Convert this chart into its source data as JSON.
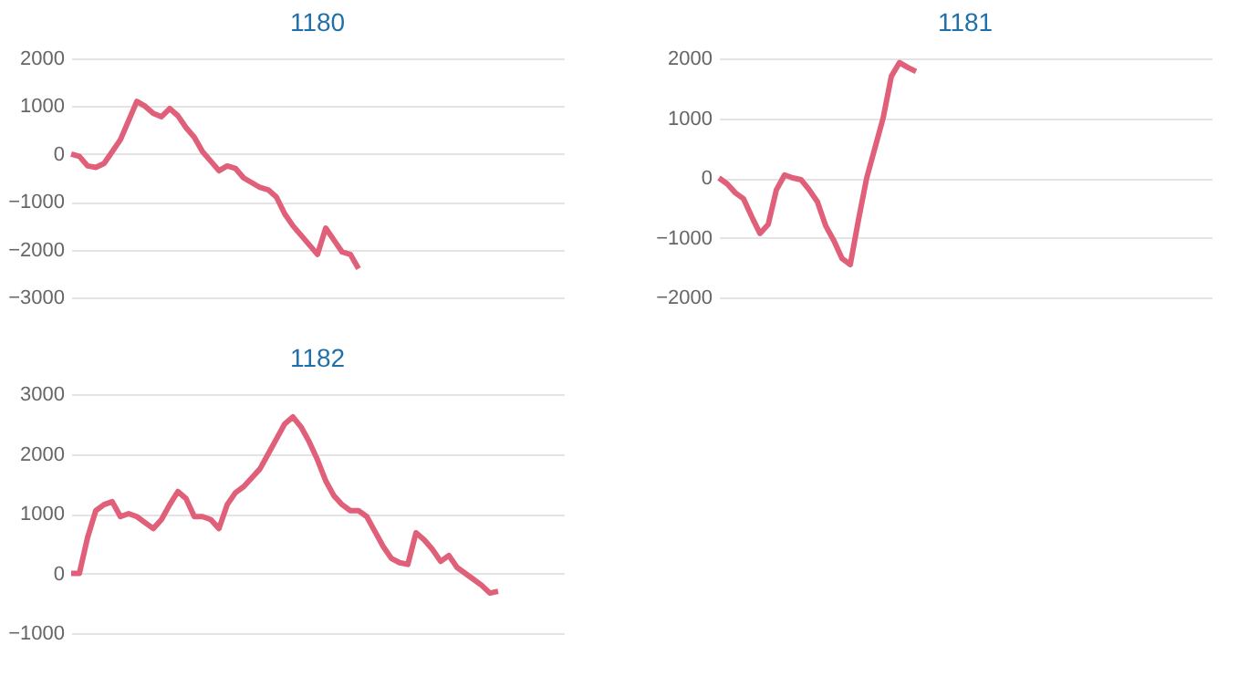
{
  "chart_data": [
    {
      "type": "line",
      "title": "1180",
      "categories": [
        null,
        null,
        null,
        null,
        null,
        null,
        null,
        null,
        null,
        null,
        null,
        null,
        null,
        null,
        null,
        null,
        null,
        null,
        null,
        null,
        null,
        null,
        null,
        null,
        null,
        null,
        null,
        null,
        null,
        null,
        null,
        null,
        null,
        null,
        null,
        null,
        null,
        null,
        null,
        null,
        null,
        null,
        null,
        null,
        null,
        null,
        null,
        null,
        null,
        null,
        null,
        null,
        null,
        null,
        null,
        null,
        null,
        null,
        null,
        null,
        null
      ],
      "series": [
        {
          "color": "#e0607a",
          "values": [
            0,
            -50,
            -250,
            -280,
            -200,
            50,
            300,
            700,
            1100,
            1000,
            850,
            780,
            950,
            800,
            550,
            350,
            50,
            -150,
            -350,
            -250,
            -300,
            -500,
            -600,
            -700,
            -750,
            -900,
            -1250,
            -1500,
            -1700,
            -1900,
            -2100,
            -1550,
            -1800,
            -2050,
            -2100,
            -2400,
            null,
            null,
            null,
            null,
            null,
            null,
            null,
            null,
            null,
            null,
            null,
            null,
            null,
            null,
            null,
            null,
            null,
            null,
            null,
            null,
            null,
            null,
            null,
            null,
            null
          ]
        }
      ],
      "ylim": [
        -3000,
        2000
      ],
      "yticks": [
        -3000,
        -2000,
        -1000,
        0,
        1000,
        2000
      ],
      "grid": "y",
      "tick_labels": "y",
      "marker": "none"
    },
    {
      "type": "line",
      "title": "1181",
      "categories": [
        null,
        null,
        null,
        null,
        null,
        null,
        null,
        null,
        null,
        null,
        null,
        null,
        null,
        null,
        null,
        null,
        null,
        null,
        null,
        null,
        null,
        null,
        null,
        null,
        null,
        null,
        null,
        null,
        null,
        null,
        null,
        null,
        null,
        null,
        null,
        null,
        null,
        null,
        null,
        null,
        null,
        null,
        null,
        null,
        null,
        null,
        null,
        null,
        null,
        null,
        null,
        null,
        null,
        null,
        null,
        null,
        null,
        null,
        null,
        null,
        null
      ],
      "series": [
        {
          "color": "#e0607a",
          "values": [
            0,
            -100,
            -250,
            -350,
            -650,
            -930,
            -780,
            -200,
            50,
            0,
            -30,
            -200,
            -400,
            -800,
            -1050,
            -1350,
            -1450,
            -700,
            0,
            500,
            1000,
            1700,
            1930,
            1850,
            1780,
            null,
            null,
            null,
            null,
            null,
            null,
            null,
            null,
            null,
            null,
            null,
            null,
            null,
            null,
            null,
            null,
            null,
            null,
            null,
            null,
            null,
            null,
            null,
            null,
            null,
            null,
            null,
            null,
            null,
            null,
            null,
            null,
            null,
            null,
            null,
            null
          ]
        }
      ],
      "ylim": [
        -2000,
        2000
      ],
      "yticks": [
        -2000,
        -1000,
        0,
        1000,
        2000
      ],
      "grid": "y",
      "tick_labels": "y",
      "marker": "none"
    },
    {
      "type": "line",
      "title": "1182",
      "categories": [
        null,
        null,
        null,
        null,
        null,
        null,
        null,
        null,
        null,
        null,
        null,
        null,
        null,
        null,
        null,
        null,
        null,
        null,
        null,
        null,
        null,
        null,
        null,
        null,
        null,
        null,
        null,
        null,
        null,
        null,
        null,
        null,
        null,
        null,
        null,
        null,
        null,
        null,
        null,
        null,
        null,
        null,
        null,
        null,
        null,
        null,
        null,
        null,
        null,
        null,
        null,
        null,
        null,
        null,
        null,
        null,
        null,
        null,
        null,
        null,
        null
      ],
      "series": [
        {
          "color": "#e0607a",
          "values": [
            0,
            0,
            600,
            1050,
            1150,
            1200,
            950,
            1000,
            950,
            850,
            750,
            900,
            1150,
            1370,
            1250,
            950,
            950,
            900,
            750,
            1150,
            1350,
            1450,
            1600,
            1750,
            2000,
            2250,
            2500,
            2620,
            2450,
            2200,
            1900,
            1550,
            1300,
            1150,
            1050,
            1050,
            950,
            700,
            450,
            250,
            180,
            150,
            680,
            560,
            400,
            200,
            300,
            100,
            0,
            -100,
            -200,
            -330,
            -300,
            null,
            null,
            null,
            null,
            null,
            null,
            null,
            null
          ]
        }
      ],
      "ylim": [
        -1000,
        3000
      ],
      "yticks": [
        -1000,
        0,
        1000,
        2000,
        3000
      ],
      "grid": "y",
      "tick_labels": "y",
      "marker": "none"
    }
  ]
}
